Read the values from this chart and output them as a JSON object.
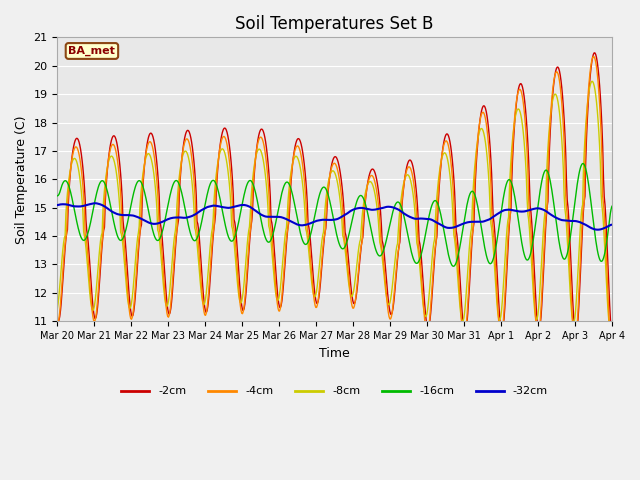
{
  "title": "Soil Temperatures Set B",
  "xlabel": "Time",
  "ylabel": "Soil Temperature (C)",
  "annotation": "BA_met",
  "ylim": [
    11.0,
    21.0
  ],
  "yticks": [
    11.0,
    12.0,
    13.0,
    14.0,
    15.0,
    16.0,
    17.0,
    18.0,
    19.0,
    20.0,
    21.0
  ],
  "series_labels": [
    "-2cm",
    "-4cm",
    "-8cm",
    "-16cm",
    "-32cm"
  ],
  "series_colors": [
    "#cc0000",
    "#ff8800",
    "#cccc00",
    "#00bb00",
    "#0000cc"
  ],
  "plot_bg_color": "#e8e8e8",
  "fig_bg_color": "#f0f0f0",
  "xtick_labels": [
    "Mar 20",
    "Mar 21",
    "Mar 22",
    "Mar 23",
    "Mar 24",
    "Mar 25",
    "Mar 26",
    "Mar 27",
    "Mar 28",
    "Mar 29",
    "Mar 30",
    "Mar 31",
    "Apr 1",
    "Apr 2",
    "Apr 3",
    "Apr 4"
  ],
  "grid_color": "#ffffff"
}
